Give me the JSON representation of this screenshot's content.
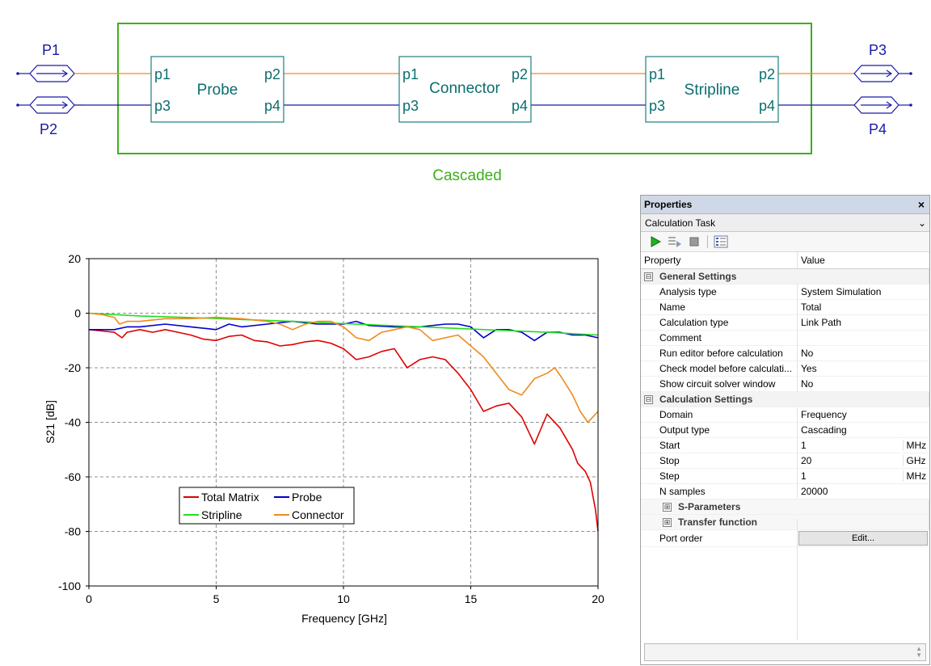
{
  "schematic": {
    "group_label": "Cascaded",
    "ports_left": [
      "P1",
      "P2"
    ],
    "ports_right": [
      "P3",
      "P4"
    ],
    "blocks": [
      {
        "name": "Probe",
        "pins": [
          "p1",
          "p2",
          "p3",
          "p4"
        ]
      },
      {
        "name": "Connector",
        "pins": [
          "p1",
          "p2",
          "p3",
          "p4"
        ]
      },
      {
        "name": "Stripline",
        "pins": [
          "p1",
          "p2",
          "p3",
          "p4"
        ]
      }
    ],
    "colors": {
      "group_border": "#3cb01a",
      "block_border": "#1f7f7f",
      "block_text": "#0b6e6e",
      "port_text": "#1a1aa8",
      "wire_orange": "#f08a1e",
      "wire_blue": "#1a1aa8"
    }
  },
  "chart_data": {
    "type": "line",
    "title": "",
    "xlabel": "Frequency [GHz]",
    "ylabel": "S21 [dB]",
    "xlim": [
      0,
      20
    ],
    "ylim": [
      -100,
      20
    ],
    "xticks": [
      0,
      5,
      10,
      15,
      20
    ],
    "yticks": [
      20,
      0,
      -20,
      -40,
      -60,
      -80,
      -100
    ],
    "grid": true,
    "legend_placement": "lower-center",
    "series": [
      {
        "name": "Total Matrix",
        "color": "#e00000",
        "x": [
          0,
          0.5,
          1,
          1.3,
          1.5,
          2,
          2.5,
          3,
          3.5,
          4,
          4.5,
          5,
          5.5,
          6,
          6.5,
          7,
          7.5,
          8,
          8.5,
          9,
          9.5,
          10,
          10.5,
          11,
          11.5,
          12,
          12.5,
          13,
          13.5,
          14,
          14.5,
          15,
          15.5,
          16,
          16.5,
          17,
          17.5,
          18,
          18.5,
          19,
          19.2,
          19.5,
          19.7,
          19.9,
          20
        ],
        "y": [
          -6,
          -6.5,
          -7,
          -9,
          -7,
          -6,
          -7,
          -6,
          -7,
          -8,
          -9.5,
          -10,
          -8.5,
          -8,
          -10,
          -10.5,
          -12,
          -11.5,
          -10.5,
          -10,
          -11,
          -13,
          -17,
          -16,
          -14,
          -13,
          -20,
          -17,
          -16,
          -17,
          -22,
          -28,
          -36,
          -34,
          -33,
          -38,
          -48,
          -37,
          -42,
          -50,
          -55,
          -58,
          -62,
          -72,
          -80
        ]
      },
      {
        "name": "Probe",
        "color": "#0000cc",
        "x": [
          0,
          1,
          1.5,
          2,
          3,
          4,
          5,
          5.5,
          6,
          7,
          8,
          9,
          10,
          10.5,
          11,
          12,
          13,
          14,
          14.5,
          15,
          15.5,
          16,
          16.5,
          17,
          17.5,
          18,
          18.5,
          19,
          19.5,
          20
        ],
        "y": [
          -6,
          -6,
          -5,
          -5,
          -4,
          -5,
          -6,
          -4,
          -5,
          -4,
          -3,
          -4,
          -4,
          -3,
          -4.5,
          -5,
          -5,
          -4,
          -4,
          -5,
          -9,
          -6,
          -6,
          -7,
          -10,
          -7,
          -7,
          -8,
          -8,
          -9
        ]
      },
      {
        "name": "Stripline",
        "color": "#22dd22",
        "x": [
          0,
          2,
          4,
          6,
          8,
          10,
          12,
          14,
          16,
          18,
          20
        ],
        "y": [
          0,
          -1,
          -1.6,
          -2.3,
          -3,
          -3.8,
          -4.6,
          -5.4,
          -6.2,
          -7,
          -8
        ]
      },
      {
        "name": "Connector",
        "color": "#f08a1e",
        "x": [
          0,
          0.5,
          1,
          1.2,
          1.5,
          2,
          2.5,
          3,
          4,
          5,
          6,
          7,
          7.5,
          8,
          8.5,
          9,
          9.5,
          10,
          10.5,
          11,
          11.5,
          12,
          12.5,
          13,
          13.5,
          14,
          14.5,
          15,
          15.5,
          16,
          16.5,
          17,
          17.5,
          18,
          18.3,
          18.6,
          19,
          19.3,
          19.6,
          19.8,
          20
        ],
        "y": [
          0,
          -0.5,
          -1.5,
          -4,
          -3,
          -3,
          -2.5,
          -2,
          -2,
          -1.5,
          -2,
          -3,
          -4,
          -6,
          -4,
          -3,
          -3,
          -5,
          -9,
          -10,
          -7,
          -6,
          -5,
          -6,
          -10,
          -9,
          -8,
          -12,
          -16,
          -22,
          -28,
          -30,
          -24,
          -22,
          -20,
          -24,
          -30,
          -36,
          -40,
          -38,
          -36
        ]
      }
    ]
  },
  "properties": {
    "title": "Properties",
    "close": "×",
    "combo_value": "Calculation Task",
    "combo_arrow": "⌄",
    "col_property": "Property",
    "col_value": "Value",
    "general_settings": "General Settings",
    "general_rows": [
      {
        "name": "Analysis type",
        "value": "System Simulation"
      },
      {
        "name": "Name",
        "value": "Total"
      },
      {
        "name": "Calculation type",
        "value": "Link Path"
      },
      {
        "name": "Comment",
        "value": ""
      },
      {
        "name": "Run editor before calculation",
        "value": "No"
      },
      {
        "name": "Check model before calculati...",
        "value": "Yes"
      },
      {
        "name": "Show circuit solver window",
        "value": "No"
      }
    ],
    "calculation_settings": "Calculation Settings",
    "calc_rows": [
      {
        "name": "Domain",
        "value": "Frequency",
        "unit": ""
      },
      {
        "name": "Output type",
        "value": "Cascading",
        "unit": ""
      },
      {
        "name": "Start",
        "value": "1",
        "unit": "MHz"
      },
      {
        "name": "Stop",
        "value": "20",
        "unit": "GHz"
      },
      {
        "name": "Step",
        "value": "1",
        "unit": "MHz"
      },
      {
        "name": "N samples",
        "value": "20000",
        "unit": ""
      }
    ],
    "s_parameters": "S-Parameters",
    "transfer_function": "Transfer function",
    "port_order": "Port order",
    "edit_button": "Edit...",
    "expand_minus": "⊟",
    "expand_plus": "⊞"
  }
}
